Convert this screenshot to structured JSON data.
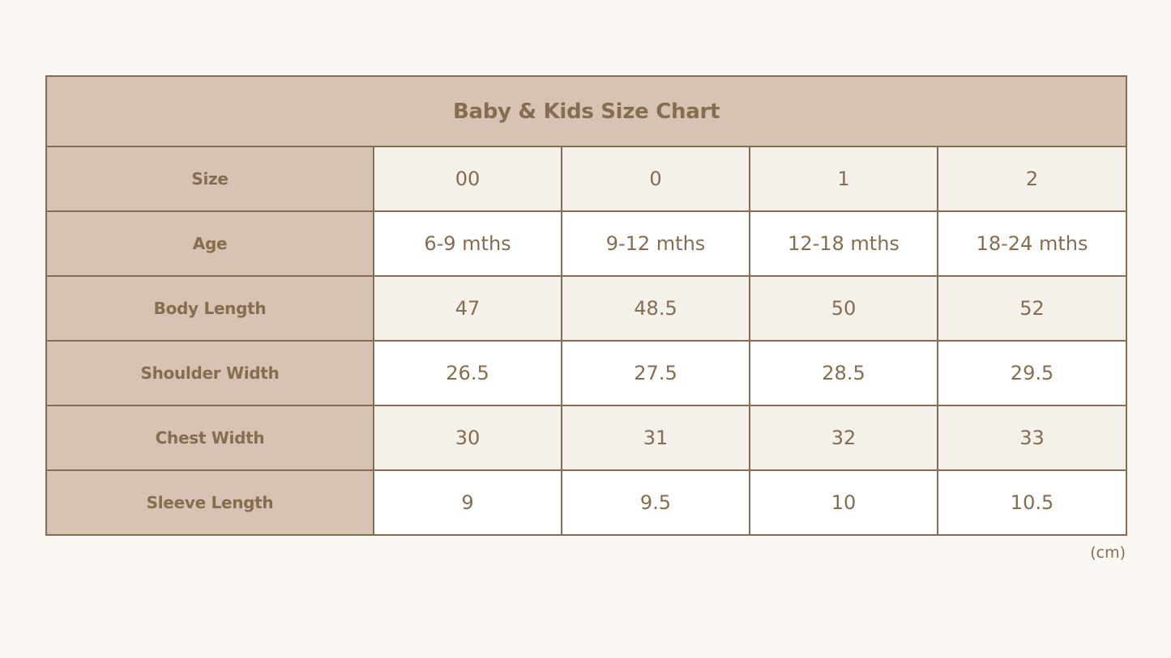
{
  "table": {
    "title": "Baby & Kids Size Chart",
    "rows": [
      {
        "label": "Size",
        "values": [
          "00",
          "0",
          "1",
          "2"
        ]
      },
      {
        "label": "Age",
        "values": [
          "6-9 mths",
          "9-12 mths",
          "12-18 mths",
          "18-24 mths"
        ]
      },
      {
        "label": "Body Length",
        "values": [
          "47",
          "48.5",
          "50",
          "52"
        ]
      },
      {
        "label": "Shoulder Width",
        "values": [
          "26.5",
          "27.5",
          "28.5",
          "29.5"
        ]
      },
      {
        "label": "Chest Width",
        "values": [
          "30",
          "31",
          "32",
          "33"
        ]
      },
      {
        "label": "Sleeve Length",
        "values": [
          "9",
          "9.5",
          "10",
          "10.5"
        ]
      }
    ],
    "unit_note": "(cm)"
  },
  "colors": {
    "page_background": "#fbf8f3",
    "header_fill": "#d6c3b4",
    "text_and_border": "#876d4f",
    "shaded_row": "#f4f0ea",
    "white_row": "#ffffff"
  }
}
